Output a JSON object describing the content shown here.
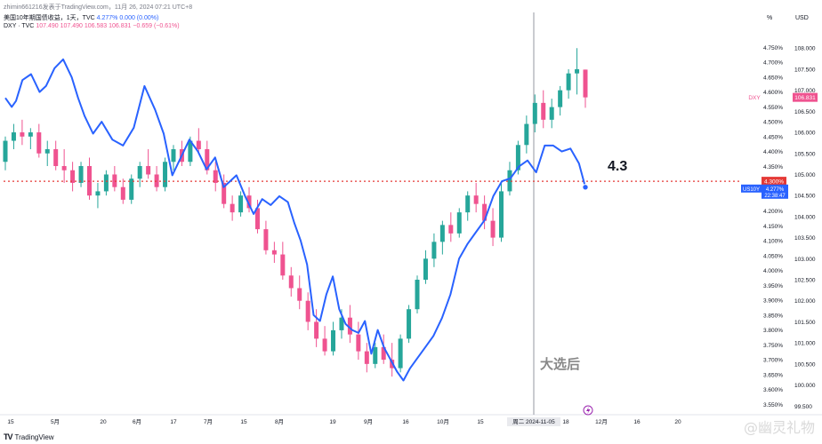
{
  "header": {
    "publisher": "zhimin661216发表于TradingView.com，11月 26, 2024 07:21 UTC+8",
    "us10y": {
      "name": "美国10年期国债收益，1天，TVC",
      "value": "4.277%",
      "change": "0.000 (0.00%)"
    },
    "dxy": {
      "name": "DXY · TVC",
      "o": "107.490",
      "h": "107.490",
      "l": "106.583",
      "c": "106.831",
      "change": "−0.659 (−0.61%)"
    }
  },
  "axes": {
    "left_unit": "%",
    "right_unit": "USD",
    "pct_ticks": [
      "4.750%",
      "4.700%",
      "4.650%",
      "4.600%",
      "4.550%",
      "4.500%",
      "4.450%",
      "4.400%",
      "4.350%",
      "4.300%",
      "4.250%",
      "4.200%",
      "4.150%",
      "4.100%",
      "4.050%",
      "4.000%",
      "3.950%",
      "3.900%",
      "3.850%",
      "3.800%",
      "3.750%",
      "3.700%",
      "3.650%",
      "3.600%",
      "3.550%"
    ],
    "usd_ticks": [
      "108.000",
      "107.500",
      "107.000",
      "106.500",
      "106.000",
      "105.500",
      "105.000",
      "104.500",
      "104.000",
      "103.500",
      "103.000",
      "102.500",
      "102.000",
      "101.500",
      "101.000",
      "100.500",
      "100.000",
      "99.500"
    ],
    "x_ticks": [
      "15",
      "5月",
      "20",
      "6月",
      "17",
      "7月",
      "15",
      "8月",
      "19",
      "9月",
      "16",
      "10月",
      "15",
      "周二 2024-11-05",
      "18",
      "12月",
      "16",
      "20"
    ]
  },
  "labels": {
    "dxy_tag": "DXY",
    "dxy_price": "106.831",
    "us10y_tag": "US10Y",
    "us10y_price": "4.277%",
    "us10y_countdown": "22:38:47",
    "ref_price": "4.300%",
    "annotation_level": "4.3",
    "annotation_election": "大选后"
  },
  "footer": {
    "brand": "TradingView",
    "logo_mark": "TV",
    "watermark": "@幽灵礼物"
  },
  "colors": {
    "up": "#26a69a",
    "down": "#ef5390",
    "us10y_line": "#2962ff",
    "ref_line": "#e53935",
    "crosshair": "#9598a1",
    "us10y_tag": "#2962ff",
    "dxy_tag": "#ef5390"
  },
  "chart_data": {
    "type": "line",
    "title": "",
    "series": [
      {
        "name": "US10Y",
        "unit": "%",
        "values": [
          4.58,
          4.55,
          4.57,
          4.64,
          4.66,
          4.6,
          4.62,
          4.68,
          4.71,
          4.65,
          4.58,
          4.52,
          4.46,
          4.5,
          4.44,
          4.42,
          4.48,
          4.62,
          4.54,
          4.46,
          4.32,
          4.38,
          4.44,
          4.4,
          4.34,
          4.38,
          4.28,
          4.3,
          4.32,
          4.25,
          4.19,
          4.24,
          4.22,
          4.25,
          4.23,
          4.16,
          4.1,
          4.02,
          3.85,
          3.83,
          3.92,
          3.98,
          3.87,
          3.82,
          3.8,
          3.79,
          3.83,
          3.72,
          3.8,
          3.74,
          3.7,
          3.66,
          3.63,
          3.67,
          3.7,
          3.74,
          3.78,
          3.84,
          3.92,
          4.04,
          4.09,
          4.13,
          4.17,
          4.25,
          4.3,
          4.31,
          4.35,
          4.37,
          4.33,
          4.42,
          4.42,
          4.4,
          4.41,
          4.36,
          4.28
        ],
        "x_index": [
          0,
          3,
          5,
          8,
          12,
          16,
          19,
          23,
          27,
          31,
          34,
          37,
          41,
          45,
          50,
          55,
          60,
          65,
          70,
          74,
          78,
          82,
          86,
          90,
          94,
          98,
          102,
          105,
          108,
          112,
          116,
          120,
          124,
          128,
          132,
          135,
          138,
          141,
          144,
          147,
          150,
          153,
          156,
          159,
          162,
          165,
          168,
          171,
          174,
          177,
          180,
          183,
          186,
          189,
          192,
          196,
          200,
          204,
          208,
          212,
          216,
          220,
          224,
          228,
          232,
          236,
          240,
          244,
          248,
          252,
          256,
          260,
          264,
          268,
          271
        ]
      },
      {
        "name": "DXY",
        "unit": "USD",
        "ohlc": [
          [
            105.3,
            105.9,
            105.1,
            105.8
          ],
          [
            105.8,
            106.2,
            105.6,
            106.0
          ],
          [
            106.0,
            106.3,
            105.7,
            105.9
          ],
          [
            105.9,
            106.1,
            105.6,
            106.0
          ],
          [
            106.0,
            106.2,
            105.4,
            105.5
          ],
          [
            105.5,
            105.8,
            105.2,
            105.6
          ],
          [
            105.6,
            105.8,
            105.1,
            105.2
          ],
          [
            105.2,
            105.6,
            104.8,
            105.1
          ],
          [
            105.1,
            105.3,
            104.6,
            104.8
          ],
          [
            104.8,
            105.3,
            104.7,
            105.2
          ],
          [
            105.2,
            105.4,
            104.4,
            104.5
          ],
          [
            104.5,
            104.8,
            104.2,
            104.6
          ],
          [
            104.6,
            105.1,
            104.5,
            105.0
          ],
          [
            105.0,
            105.2,
            104.6,
            104.7
          ],
          [
            104.7,
            104.9,
            104.3,
            104.4
          ],
          [
            104.4,
            105.0,
            104.3,
            104.9
          ],
          [
            104.9,
            105.3,
            104.7,
            105.2
          ],
          [
            105.2,
            105.6,
            104.9,
            105.0
          ],
          [
            105.0,
            105.2,
            104.6,
            104.7
          ],
          [
            104.7,
            105.4,
            104.6,
            105.3
          ],
          [
            105.3,
            105.7,
            105.1,
            105.6
          ],
          [
            105.6,
            105.8,
            105.2,
            105.3
          ],
          [
            105.3,
            105.9,
            105.2,
            105.8
          ],
          [
            105.8,
            106.1,
            105.5,
            105.6
          ],
          [
            105.6,
            105.8,
            105.0,
            105.1
          ],
          [
            105.1,
            105.3,
            104.6,
            104.8
          ],
          [
            104.8,
            105.0,
            104.2,
            104.3
          ],
          [
            104.3,
            104.5,
            103.9,
            104.1
          ],
          [
            104.1,
            104.6,
            104.0,
            104.5
          ],
          [
            104.5,
            104.7,
            104.1,
            104.2
          ],
          [
            104.2,
            104.4,
            103.6,
            103.7
          ],
          [
            103.7,
            103.9,
            103.1,
            103.2
          ],
          [
            103.2,
            103.4,
            102.9,
            103.1
          ],
          [
            103.1,
            103.4,
            102.5,
            102.6
          ],
          [
            102.6,
            102.8,
            102.1,
            102.3
          ],
          [
            102.3,
            102.6,
            101.8,
            102.0
          ],
          [
            102.0,
            102.2,
            101.3,
            101.5
          ],
          [
            101.5,
            101.8,
            100.9,
            101.1
          ],
          [
            101.1,
            101.4,
            100.7,
            100.8
          ],
          [
            100.8,
            101.5,
            100.7,
            101.3
          ],
          [
            101.3,
            101.8,
            101.1,
            101.6
          ],
          [
            101.6,
            101.9,
            101.0,
            101.2
          ],
          [
            101.2,
            101.5,
            100.6,
            100.8
          ],
          [
            100.8,
            101.0,
            100.3,
            100.5
          ],
          [
            100.5,
            101.0,
            100.4,
            100.9
          ],
          [
            100.9,
            101.2,
            100.5,
            100.6
          ],
          [
            100.6,
            101.0,
            100.2,
            100.4
          ],
          [
            100.4,
            101.2,
            100.3,
            101.1
          ],
          [
            101.1,
            101.9,
            101.0,
            101.8
          ],
          [
            101.8,
            102.6,
            101.7,
            102.5
          ],
          [
            102.5,
            103.2,
            102.4,
            103.0
          ],
          [
            103.0,
            103.6,
            102.8,
            103.4
          ],
          [
            103.4,
            103.9,
            103.1,
            103.8
          ],
          [
            103.8,
            104.1,
            103.4,
            103.6
          ],
          [
            103.6,
            104.2,
            103.5,
            104.1
          ],
          [
            104.1,
            104.6,
            103.9,
            104.5
          ],
          [
            104.5,
            104.8,
            104.1,
            104.3
          ],
          [
            104.3,
            104.5,
            103.7,
            103.9
          ],
          [
            103.9,
            104.2,
            103.3,
            103.5
          ],
          [
            103.5,
            104.8,
            103.4,
            104.6
          ],
          [
            104.6,
            105.3,
            104.5,
            105.1
          ],
          [
            105.1,
            105.8,
            105.0,
            105.7
          ],
          [
            105.7,
            106.4,
            105.5,
            106.2
          ],
          [
            106.2,
            106.9,
            106.0,
            106.7
          ],
          [
            106.7,
            107.0,
            106.1,
            106.3
          ],
          [
            106.3,
            106.8,
            106.1,
            106.6
          ],
          [
            106.6,
            107.1,
            106.4,
            107.0
          ],
          [
            107.0,
            107.5,
            106.8,
            107.4
          ],
          [
            107.4,
            108.0,
            106.9,
            107.5
          ],
          [
            107.49,
            107.49,
            106.583,
            106.831
          ]
        ]
      }
    ],
    "reference_line": {
      "value": 4.3,
      "unit": "%"
    },
    "crosshair_date": "周二 2024-11-05",
    "ylim_left": [
      3.53,
      4.79
    ],
    "ylim_right": [
      99.4,
      108.3
    ],
    "grid": false,
    "legend": "top-left"
  }
}
